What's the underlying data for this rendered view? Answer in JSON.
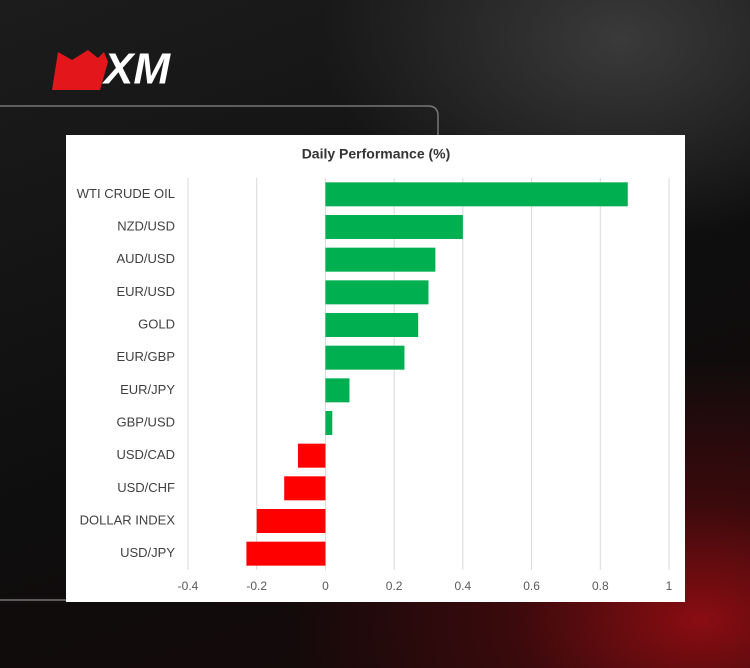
{
  "brand": "XM",
  "chart_data": {
    "type": "hbar",
    "title": "Daily Performance (%)",
    "categories": [
      "WTI CRUDE OIL",
      "NZD/USD",
      "AUD/USD",
      "EUR/USD",
      "GOLD",
      "EUR/GBP",
      "EUR/JPY",
      "GBP/USD",
      "USD/CAD",
      "USD/CHF",
      "DOLLAR INDEX",
      "USD/JPY"
    ],
    "values": [
      0.88,
      0.4,
      0.32,
      0.3,
      0.27,
      0.23,
      0.07,
      0.02,
      -0.08,
      -0.12,
      -0.2,
      -0.23
    ],
    "positive_color": "#00b050",
    "negative_color": "#ff0000",
    "xlim": [
      -0.4,
      1
    ],
    "xticks": [
      -0.4,
      -0.2,
      0,
      0.2,
      0.4,
      0.6,
      0.8,
      1
    ],
    "grid": true
  }
}
